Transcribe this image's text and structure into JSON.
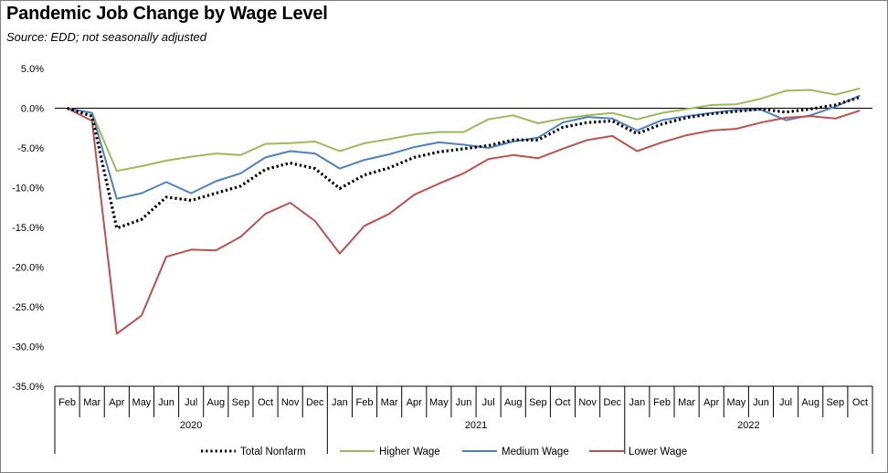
{
  "chart_data": {
    "type": "line",
    "title": "Pandemic Job Change by Wage Level",
    "subtitle": "Source:  EDD; not seasonally adjusted",
    "ylim": [
      -35,
      5
    ],
    "yticks": [
      5,
      0,
      -5,
      -10,
      -15,
      -20,
      -25,
      -30,
      -35
    ],
    "ytick_labels": [
      "5.0%",
      "0.0%",
      "-5.0%",
      "-10.0%",
      "-15.0%",
      "-20.0%",
      "-25.0%",
      "-30.0%",
      "-35.0%"
    ],
    "categories": [
      "Feb",
      "Mar",
      "Apr",
      "May",
      "Jun",
      "Jul",
      "Aug",
      "Sep",
      "Oct",
      "Nov",
      "Dec",
      "Jan",
      "Feb",
      "Mar",
      "Apr",
      "May",
      "Jun",
      "Jul",
      "Aug",
      "Sep",
      "Oct",
      "Nov",
      "Dec",
      "Jan",
      "Feb",
      "Mar",
      "Apr",
      "May",
      "Jun",
      "Jul",
      "Aug",
      "Sep",
      "Oct"
    ],
    "year_groups": [
      {
        "label": "2020",
        "start": 0,
        "end": 10
      },
      {
        "label": "2021",
        "start": 11,
        "end": 22
      },
      {
        "label": "2022",
        "start": 23,
        "end": 32
      }
    ],
    "series": [
      {
        "name": "Total Nonfarm",
        "color": "#000000",
        "style": "dotted",
        "values": [
          0.0,
          -1.0,
          -15.1,
          -14.0,
          -11.2,
          -11.6,
          -10.7,
          -9.8,
          -7.7,
          -6.9,
          -7.6,
          -10.1,
          -8.4,
          -7.5,
          -6.2,
          -5.5,
          -5.1,
          -4.7,
          -4.0,
          -4.0,
          -2.4,
          -1.8,
          -1.6,
          -3.2,
          -2.0,
          -1.2,
          -0.7,
          -0.4,
          -0.1,
          -0.5,
          -0.1,
          0.4,
          1.4
        ]
      },
      {
        "name": "Higher Wage",
        "color": "#9bbb59",
        "style": "solid",
        "values": [
          0.0,
          -0.6,
          -7.9,
          -7.3,
          -6.6,
          -6.1,
          -5.7,
          -5.9,
          -4.5,
          -4.4,
          -4.2,
          -5.4,
          -4.4,
          -3.9,
          -3.3,
          -3.0,
          -3.0,
          -1.4,
          -0.9,
          -1.9,
          -1.3,
          -0.9,
          -0.6,
          -1.4,
          -0.6,
          -0.1,
          0.4,
          0.5,
          1.2,
          2.2,
          2.3,
          1.7,
          2.5
        ]
      },
      {
        "name": "Medium Wage",
        "color": "#4f81bd",
        "style": "solid",
        "values": [
          0.0,
          -0.6,
          -11.4,
          -10.7,
          -9.3,
          -10.7,
          -9.2,
          -8.2,
          -6.2,
          -5.4,
          -5.7,
          -7.6,
          -6.5,
          -5.8,
          -4.9,
          -4.3,
          -4.6,
          -5.0,
          -4.2,
          -3.7,
          -1.8,
          -1.1,
          -1.3,
          -2.8,
          -1.5,
          -1.0,
          -0.6,
          -0.2,
          -0.2,
          -1.5,
          -0.9,
          0.2,
          1.6
        ]
      },
      {
        "name": "Lower Wage",
        "color": "#c0504d",
        "style": "solid",
        "values": [
          0.0,
          -1.6,
          -28.4,
          -26.1,
          -18.7,
          -17.8,
          -17.9,
          -16.2,
          -13.3,
          -11.9,
          -14.2,
          -18.3,
          -14.8,
          -13.3,
          -10.9,
          -9.5,
          -8.2,
          -6.4,
          -5.9,
          -6.3,
          -5.1,
          -4.0,
          -3.5,
          -5.4,
          -4.3,
          -3.4,
          -2.8,
          -2.6,
          -1.8,
          -1.2,
          -1.0,
          -1.3,
          -0.3
        ]
      }
    ],
    "legend_position": "bottom-center",
    "grid": false
  }
}
